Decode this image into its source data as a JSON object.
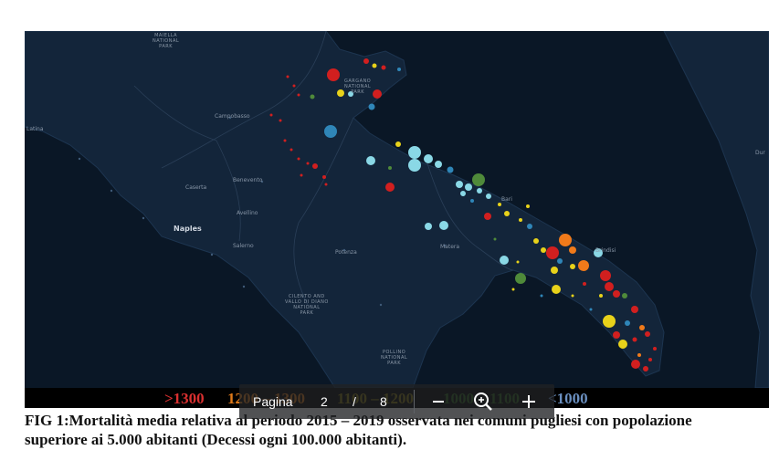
{
  "map": {
    "labels": {
      "majella": "MAIELLA\nNATIONAL\nPARK",
      "gargano": "GARGANO\nNATIONAL\nPARK",
      "cilento": "CILENTO AND\nVALLO DI DIANO\nNATIONAL\nPARK",
      "pollino": "POLLINO\nNATIONAL\nPARK"
    },
    "cities": {
      "campobasso": "Campobasso",
      "latina": "Latina",
      "caserta": "Caserta",
      "benevento": "Benevento",
      "avellino": "Avellino",
      "naples": "Naples",
      "salerno": "Salerno",
      "potenza": "Potenza",
      "matera": "Matera",
      "bari": "Bari",
      "brindisi": "Brindisi",
      "dur": "Dur"
    },
    "colors": {
      "background": "#0e1c2e",
      "land": "#13253a",
      "sea": "#0a1726",
      "red": "#d11f1f",
      "orange": "#f07a1a",
      "yellow": "#e8d21a",
      "green": "#4f8a3a",
      "cyan": "#8ad8e6",
      "blue": "#2f86b8"
    }
  },
  "legend": {
    "items": [
      {
        "label": ">1300",
        "color": "#d93030"
      },
      {
        "label": "1200 – 1300",
        "color": "#e07a1a"
      },
      {
        "label": "1100 – 1200",
        "color": "#8a7a10"
      },
      {
        "label": "1000 – 1100",
        "color": "#2e6a1e"
      },
      {
        "label": "<1000",
        "color": "#6a8fbf"
      }
    ]
  },
  "caption": {
    "text": "FIG 1:Mortalità media relativa al periodo 2015 – 2019 osservata nei comuni pugliesi con popolazione superiore ai 5.000 abitanti (Decessi ogni 100.000 abitanti)."
  },
  "pager": {
    "page_label": "Pagina",
    "current_page": "2",
    "separator": "/",
    "total_pages": "8",
    "zoom_out_icon": "minus-icon",
    "zoom_fit_icon": "zoom-magnifier-icon",
    "zoom_in_icon": "plus-icon"
  }
}
